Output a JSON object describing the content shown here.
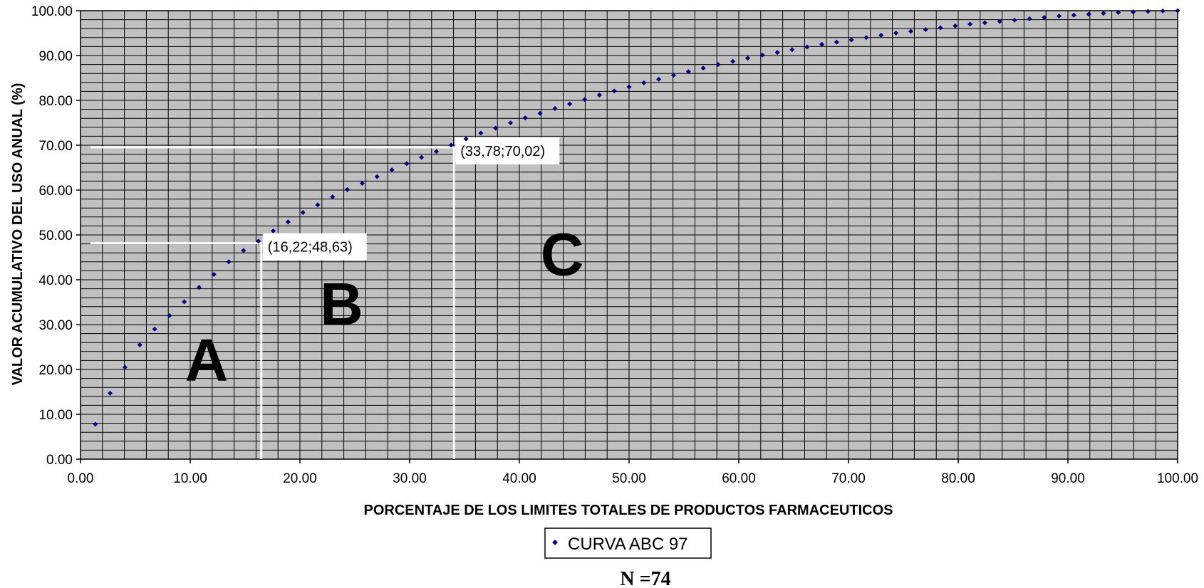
{
  "chart_data": {
    "type": "scatter",
    "xlabel": "PORCENTAJE DE LOS LIMITES TOTALES DE PRODUCTOS FARMACEUTICOS",
    "ylabel": "VALOR ACUMULATIVO DEL USO ANUAL (%)",
    "xlim": [
      0,
      100
    ],
    "ylim": [
      0,
      100
    ],
    "x_ticks": [
      "0.00",
      "10.00",
      "20.00",
      "30.00",
      "40.00",
      "50.00",
      "60.00",
      "70.00",
      "80.00",
      "90.00",
      "100.00"
    ],
    "y_ticks": [
      "0.00",
      "10.00",
      "20.00",
      "30.00",
      "40.00",
      "50.00",
      "60.00",
      "70.00",
      "80.00",
      "90.00",
      "100.00"
    ],
    "grid": true,
    "background_color": "#c0c0c0",
    "grid_color": "#000000",
    "marker_color": "#000080",
    "legend": {
      "position": "bottom",
      "entries": [
        "CURVA ABC 97"
      ]
    },
    "series": [
      {
        "name": "CURVA ABC 97",
        "x": [
          1.35,
          2.7,
          4.05,
          5.41,
          6.76,
          8.11,
          9.46,
          10.81,
          12.16,
          13.51,
          14.86,
          16.22,
          17.57,
          18.92,
          20.27,
          21.62,
          22.97,
          24.32,
          25.68,
          27.03,
          28.38,
          29.73,
          31.08,
          32.43,
          33.78,
          35.14,
          36.49,
          37.84,
          39.19,
          40.54,
          41.89,
          43.24,
          44.59,
          45.95,
          47.3,
          48.65,
          50.0,
          51.35,
          52.7,
          54.05,
          55.41,
          56.76,
          58.11,
          59.46,
          60.81,
          62.16,
          63.51,
          64.86,
          66.22,
          67.57,
          68.92,
          70.27,
          71.62,
          72.97,
          74.32,
          75.68,
          77.03,
          78.38,
          79.73,
          81.08,
          82.43,
          83.78,
          85.14,
          86.49,
          87.84,
          89.19,
          90.54,
          91.89,
          93.24,
          94.59,
          95.95,
          97.3,
          98.65,
          100.0
        ],
        "y": [
          7.8,
          14.7,
          20.5,
          25.5,
          29.0,
          32.0,
          35.1,
          38.3,
          41.2,
          44.0,
          46.5,
          48.63,
          50.9,
          52.9,
          55.0,
          56.7,
          58.5,
          60.1,
          61.5,
          63.0,
          64.5,
          65.9,
          67.3,
          68.6,
          70.02,
          71.4,
          72.7,
          73.8,
          75.0,
          76.1,
          77.1,
          78.2,
          79.2,
          80.2,
          81.2,
          82.1,
          83.0,
          83.9,
          84.7,
          85.6,
          86.4,
          87.2,
          88.0,
          88.7,
          89.4,
          90.1,
          90.7,
          91.3,
          91.9,
          92.5,
          93.0,
          93.5,
          94.0,
          94.5,
          95.0,
          95.4,
          95.8,
          96.2,
          96.6,
          97.0,
          97.3,
          97.6,
          97.9,
          98.2,
          98.5,
          98.8,
          99.0,
          99.2,
          99.4,
          99.6,
          99.7,
          99.85,
          99.95,
          100.0
        ]
      }
    ],
    "guide_lines": [
      {
        "x": 16.22,
        "y": 48.63,
        "label": "(16,22;48,63)"
      },
      {
        "x": 33.78,
        "y": 70.02,
        "label": "(33,78;70,02)"
      }
    ],
    "zones": [
      {
        "label": "A",
        "x": 11.5,
        "y": 17.5
      },
      {
        "label": "B",
        "x": 23.8,
        "y": 30
      },
      {
        "label": "C",
        "x": 43.9,
        "y": 41
      }
    ],
    "footnote": "N =74"
  }
}
